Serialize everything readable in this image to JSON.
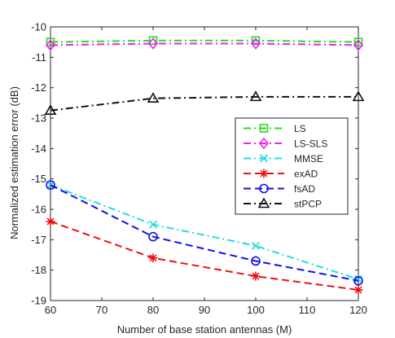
{
  "chart_data": {
    "type": "line",
    "title": "",
    "xlabel": "Number of base station antennas (M)",
    "ylabel": "Normalized estimation error (dB)",
    "xlim": [
      60,
      120
    ],
    "ylim": [
      -19,
      -10
    ],
    "xticks": [
      60,
      70,
      80,
      90,
      100,
      110,
      120
    ],
    "yticks": [
      -10,
      -11,
      -12,
      -13,
      -14,
      -15,
      -16,
      -17,
      -18,
      -19
    ],
    "grid": false,
    "legend_position": "right",
    "x": [
      60,
      80,
      100,
      120
    ],
    "series": [
      {
        "name": "LS",
        "values": [
          -10.5,
          -10.45,
          -10.45,
          -10.5
        ],
        "color": "#22dd22",
        "dash": "dashdot",
        "marker": "square"
      },
      {
        "name": "LS-SLS",
        "values": [
          -10.6,
          -10.55,
          -10.55,
          -10.6
        ],
        "color": "#ee22ee",
        "dash": "dashdot",
        "marker": "diamond"
      },
      {
        "name": "MMSE",
        "values": [
          -15.2,
          -16.5,
          -17.2,
          -18.3
        ],
        "color": "#22dddd",
        "dash": "dashdot",
        "marker": "x"
      },
      {
        "name": "exAD",
        "values": [
          -16.4,
          -17.6,
          -18.2,
          -18.65
        ],
        "color": "#ee1111",
        "dash": "dash",
        "marker": "star"
      },
      {
        "name": "fsAD",
        "values": [
          -15.2,
          -16.9,
          -17.7,
          -18.35
        ],
        "color": "#1111ee",
        "dash": "dash",
        "marker": "circle"
      },
      {
        "name": "stPCP",
        "values": [
          -12.75,
          -12.35,
          -12.3,
          -12.3
        ],
        "color": "#111111",
        "dash": "dashdot",
        "marker": "triangle"
      }
    ]
  }
}
